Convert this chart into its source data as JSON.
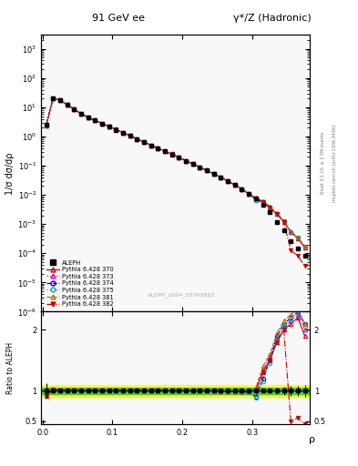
{
  "title_left": "91 GeV ee",
  "title_right": "γ*/Z (Hadronic)",
  "ylabel_main": "1/σ dσ/dρ",
  "ylabel_ratio": "Ratio to ALEPH",
  "xlabel": "ρ",
  "right_label_top": "Rivet 3.1.10, ≥ 2.7M events",
  "right_label_bot": "mcplots.cern.ch [arXiv:1306.3436]",
  "watermark": "ALEPH_2004_S5765862",
  "rho_values": [
    0.005,
    0.015,
    0.025,
    0.035,
    0.045,
    0.055,
    0.065,
    0.075,
    0.085,
    0.095,
    0.105,
    0.115,
    0.125,
    0.135,
    0.145,
    0.155,
    0.165,
    0.175,
    0.185,
    0.195,
    0.205,
    0.215,
    0.225,
    0.235,
    0.245,
    0.255,
    0.265,
    0.275,
    0.285,
    0.295,
    0.305,
    0.315,
    0.325,
    0.335,
    0.345,
    0.355,
    0.365,
    0.375
  ],
  "aleph_vals": [
    2.5,
    20.0,
    17.5,
    12.0,
    8.5,
    6.0,
    4.5,
    3.5,
    2.8,
    2.2,
    1.7,
    1.35,
    1.05,
    0.82,
    0.64,
    0.5,
    0.39,
    0.31,
    0.245,
    0.19,
    0.148,
    0.115,
    0.088,
    0.068,
    0.052,
    0.04,
    0.03,
    0.022,
    0.016,
    0.011,
    0.0075,
    0.0045,
    0.0025,
    0.0012,
    0.0006,
    0.00025,
    0.00015,
    8e-05
  ],
  "aleph_err_lo": [
    0.3,
    0.8,
    0.5,
    0.35,
    0.25,
    0.18,
    0.13,
    0.1,
    0.08,
    0.06,
    0.05,
    0.04,
    0.03,
    0.024,
    0.018,
    0.014,
    0.011,
    0.009,
    0.007,
    0.0055,
    0.0043,
    0.0034,
    0.0026,
    0.002,
    0.0016,
    0.0012,
    0.0009,
    0.00065,
    0.00048,
    0.00034,
    0.00024,
    0.00015,
    0.0001,
    6e-05,
    4e-05,
    2e-05,
    1.2e-05,
    8e-06
  ],
  "aleph_err_hi": [
    0.3,
    0.8,
    0.5,
    0.35,
    0.25,
    0.18,
    0.13,
    0.1,
    0.08,
    0.06,
    0.05,
    0.04,
    0.03,
    0.024,
    0.018,
    0.014,
    0.011,
    0.009,
    0.007,
    0.0055,
    0.0043,
    0.0034,
    0.0026,
    0.002,
    0.0016,
    0.0012,
    0.0009,
    0.00065,
    0.00048,
    0.00034,
    0.00024,
    0.00015,
    0.0001,
    6e-05,
    4e-05,
    2e-05,
    1.2e-05,
    8e-06
  ],
  "mc_series": [
    {
      "label": "Pythia 6.428 370",
      "color": "#cc0000",
      "linestyle": "-",
      "marker": "^",
      "filled": false
    },
    {
      "label": "Pythia 6.428 373",
      "color": "#cc00cc",
      "linestyle": ":",
      "marker": "^",
      "filled": false
    },
    {
      "label": "Pythia 6.428 374",
      "color": "#0000cc",
      "linestyle": "--",
      "marker": "o",
      "filled": false
    },
    {
      "label": "Pythia 6.428 375",
      "color": "#00aaaa",
      "linestyle": ":",
      "marker": "o",
      "filled": false
    },
    {
      "label": "Pythia 6.428 381",
      "color": "#cc6600",
      "linestyle": "--",
      "marker": "^",
      "filled": false
    },
    {
      "label": "Pythia 6.428 382",
      "color": "#cc0000",
      "linestyle": "-.",
      "marker": "v",
      "filled": true
    }
  ],
  "mc_ratios": [
    [
      0.92,
      1.02,
      1.01,
      1.01,
      1.01,
      1.01,
      1.005,
      1.005,
      1.005,
      1.005,
      1.01,
      1.01,
      1.01,
      1.01,
      1.005,
      1.005,
      1.005,
      1.005,
      1.005,
      1.005,
      1.0,
      1.0,
      1.0,
      1.0,
      1.0,
      0.995,
      0.99,
      0.99,
      0.99,
      0.99,
      1.0,
      1.3,
      1.5,
      1.8,
      2.0,
      2.1,
      2.2,
      1.9
    ],
    [
      0.93,
      1.02,
      1.01,
      1.01,
      1.01,
      1.01,
      1.005,
      1.005,
      1.005,
      1.005,
      1.01,
      1.01,
      1.01,
      1.01,
      1.005,
      1.005,
      1.005,
      1.005,
      1.005,
      1.005,
      1.0,
      1.0,
      1.0,
      1.0,
      1.0,
      0.995,
      0.99,
      0.99,
      0.99,
      0.99,
      1.0,
      1.35,
      1.55,
      1.85,
      2.05,
      2.15,
      2.25,
      2.0
    ],
    [
      0.94,
      1.02,
      1.01,
      1.01,
      1.01,
      1.01,
      1.005,
      1.005,
      1.005,
      1.005,
      1.01,
      1.01,
      1.01,
      1.01,
      1.005,
      1.005,
      1.005,
      1.005,
      1.005,
      1.005,
      1.0,
      1.0,
      1.0,
      1.0,
      1.0,
      0.995,
      0.99,
      0.99,
      0.98,
      0.97,
      0.9,
      1.2,
      1.5,
      1.9,
      2.1,
      2.2,
      2.3,
      2.1
    ],
    [
      0.93,
      1.02,
      1.01,
      1.01,
      1.01,
      1.01,
      1.005,
      1.005,
      1.005,
      1.005,
      1.01,
      1.01,
      1.01,
      1.01,
      1.005,
      1.005,
      1.005,
      1.005,
      1.005,
      1.005,
      1.0,
      1.0,
      1.0,
      1.0,
      1.0,
      0.995,
      0.99,
      0.99,
      0.98,
      0.97,
      0.88,
      1.15,
      1.45,
      1.85,
      2.08,
      2.18,
      2.28,
      2.05
    ],
    [
      0.93,
      1.02,
      1.01,
      1.01,
      1.01,
      1.01,
      1.005,
      1.005,
      1.005,
      1.005,
      1.01,
      1.01,
      1.01,
      1.01,
      1.005,
      1.005,
      1.005,
      1.005,
      1.005,
      1.005,
      1.0,
      1.0,
      1.0,
      1.0,
      1.0,
      0.995,
      0.99,
      0.99,
      0.99,
      0.99,
      1.05,
      1.4,
      1.6,
      1.95,
      2.15,
      2.25,
      2.35,
      2.1
    ],
    [
      0.92,
      1.02,
      1.01,
      1.01,
      1.01,
      1.01,
      1.005,
      1.005,
      1.005,
      1.005,
      1.01,
      1.01,
      1.01,
      1.01,
      1.005,
      1.005,
      1.005,
      1.005,
      1.005,
      1.005,
      1.0,
      1.0,
      1.0,
      1.0,
      1.0,
      0.995,
      0.99,
      0.99,
      0.99,
      0.99,
      1.0,
      1.3,
      1.5,
      1.8,
      2.0,
      0.5,
      0.55,
      0.45
    ]
  ],
  "ratio_green_band": [
    0.95,
    1.05
  ],
  "ratio_yellow_band": [
    0.9,
    1.1
  ],
  "xlim": [
    -0.002,
    0.382
  ],
  "xticks": [
    0.0,
    0.1,
    0.2,
    0.3
  ],
  "ylim_main": [
    1e-06,
    3000.0
  ],
  "ylim_ratio": [
    0.45,
    2.3
  ],
  "ratio_yticks": [
    0.5,
    1.0,
    2.0
  ],
  "ratio_yticklabels": [
    "0.5",
    "1",
    "2"
  ],
  "bg_color": "#f8f8f8"
}
